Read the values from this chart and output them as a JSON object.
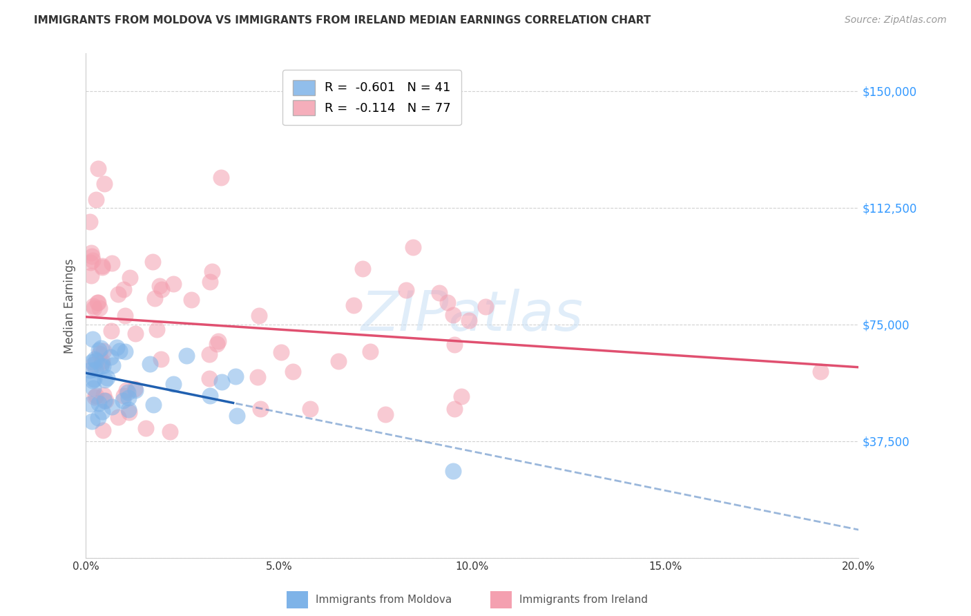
{
  "title": "IMMIGRANTS FROM MOLDOVA VS IMMIGRANTS FROM IRELAND MEDIAN EARNINGS CORRELATION CHART",
  "source": "Source: ZipAtlas.com",
  "ylabel": "Median Earnings",
  "yticks": [
    0,
    37500,
    75000,
    112500,
    150000
  ],
  "ytick_labels": [
    "",
    "$37,500",
    "$75,000",
    "$112,500",
    "$150,000"
  ],
  "xlim": [
    0.0,
    0.2
  ],
  "ylim": [
    0,
    162000
  ],
  "color_moldova": "#7EB3E8",
  "color_ireland": "#F4A0B0",
  "line_color_moldova": "#2060B0",
  "line_color_ireland": "#E05070",
  "moldova_R": -0.601,
  "moldova_N": 41,
  "ireland_R": -0.114,
  "ireland_N": 77
}
